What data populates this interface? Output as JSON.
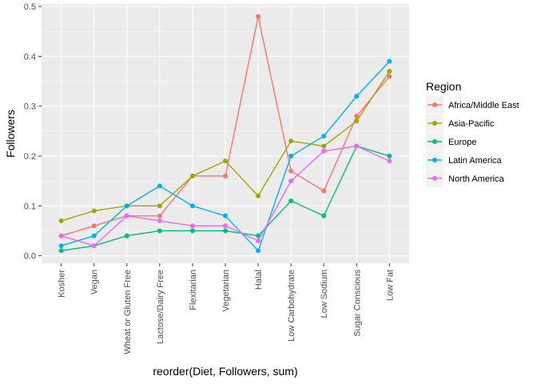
{
  "chart_data": {
    "type": "line",
    "xlabel": "reorder(Diet, Followers, sum)",
    "ylabel": "Followers",
    "ylim": [
      -0.015,
      0.505
    ],
    "yticks": [
      0.0,
      0.1,
      0.2,
      0.3,
      0.4,
      0.5
    ],
    "ytick_labels": [
      "0.0",
      "0.1",
      "0.2",
      "0.3",
      "0.4",
      "0.5"
    ],
    "grid": true,
    "legend": {
      "title": "Region",
      "placement": "right"
    },
    "categories": [
      "Kosher",
      "Vegan",
      "Wheat or Gluten Free",
      "Lactose/Dairy Free",
      "Flexitarian",
      "Vegetarian",
      "Halal",
      "Low Carbohydrate",
      "Low Sodium",
      "Sugar Conscious",
      "Low Fat"
    ],
    "series": [
      {
        "name": "Africa/Middle East",
        "color": "#F8766D",
        "values": [
          0.04,
          0.06,
          0.08,
          0.08,
          0.16,
          0.16,
          0.48,
          0.17,
          0.13,
          0.28,
          0.36
        ]
      },
      {
        "name": "Asia-Pacific",
        "color": "#A3A500",
        "values": [
          0.07,
          0.09,
          0.1,
          0.1,
          0.16,
          0.19,
          0.12,
          0.23,
          0.22,
          0.27,
          0.37
        ]
      },
      {
        "name": "Europe",
        "color": "#00BF7D",
        "values": [
          0.01,
          0.02,
          0.04,
          0.05,
          0.05,
          0.05,
          0.04,
          0.11,
          0.08,
          0.22,
          0.2
        ]
      },
      {
        "name": "Latin America",
        "color": "#00B0F6",
        "values": [
          0.02,
          0.04,
          0.1,
          0.14,
          0.1,
          0.08,
          0.01,
          0.2,
          0.24,
          0.32,
          0.39
        ]
      },
      {
        "name": "North America",
        "color": "#E76BF3",
        "values": [
          0.04,
          0.02,
          0.08,
          0.07,
          0.06,
          0.06,
          0.03,
          0.15,
          0.21,
          0.22,
          0.19
        ]
      }
    ]
  }
}
